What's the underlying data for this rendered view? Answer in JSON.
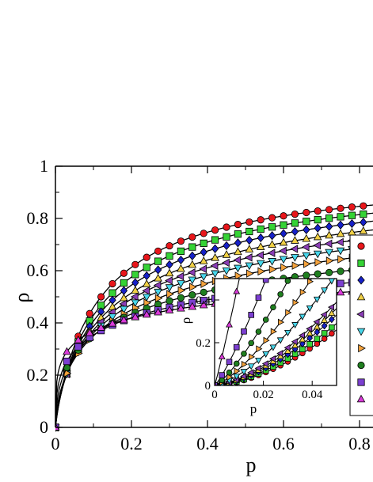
{
  "chart_data": {
    "type": "line",
    "main": {
      "xlabel": "p",
      "ylabel": "ρ",
      "xlim": [
        0,
        0.82
      ],
      "ylim": [
        0,
        1
      ],
      "xticks": [
        "0",
        "0.2",
        "0.4",
        "0.6",
        "0.8"
      ],
      "yticks": [
        "0",
        "0.2",
        "0.4",
        "0.6",
        "0.8",
        "1"
      ]
    },
    "inset": {
      "xlabel": "p",
      "ylabel": "ρ",
      "xlim": [
        0,
        0.05
      ],
      "ylim": [
        0,
        0.5
      ],
      "xticks": [
        "0",
        "0.02",
        "0.04"
      ],
      "yticks": [
        "0",
        "0.2",
        "0.4"
      ]
    },
    "legend": {
      "placement": "right",
      "labels": []
    },
    "series": [
      {
        "marker": "circle",
        "color": "#e8161b",
        "k": 0.12,
        "r": 0.9,
        "ibeta": 0.66,
        "imax": 0.26
      },
      {
        "marker": "square",
        "color": "#35d335",
        "k": 0.14,
        "r": 0.85,
        "ibeta": 0.63,
        "imax": 0.29
      },
      {
        "marker": "diamond",
        "color": "#1620c8",
        "k": 0.16,
        "r": 0.8,
        "ibeta": 0.6,
        "imax": 0.33
      },
      {
        "marker": "triangle-up",
        "color": "#f0d045",
        "k": 0.185,
        "r": 0.75,
        "ibeta": 0.58,
        "imax": 0.36
      },
      {
        "marker": "triangle-left",
        "color": "#8a3db5",
        "k": 0.21,
        "r": 0.7,
        "ibeta": 0.55,
        "imax": 0.39
      },
      {
        "marker": "triangle-down",
        "color": "#47d6ea",
        "k": 0.24,
        "r": 0.65,
        "ibeta": 0.45,
        "imax": 0.52
      },
      {
        "marker": "triangle-right",
        "color": "#f4a23c",
        "k": 0.28,
        "r": 0.6,
        "ibeta": 0.35,
        "imax": 0.68
      },
      {
        "marker": "circle",
        "color": "#1f7f1f",
        "k": 0.34,
        "r": 0.5,
        "ibeta": 0.3,
        "imax": 0.95
      },
      {
        "marker": "square",
        "color": "#7b3fd0",
        "k": 0.45,
        "r": 0.4,
        "ibeta": 0.2,
        "imax": 1.4
      },
      {
        "marker": "triangle-up",
        "color": "#d93ad9",
        "k": 0.6,
        "r": 0.3,
        "ibeta": 0.08,
        "imax": 2.8
      }
    ]
  }
}
